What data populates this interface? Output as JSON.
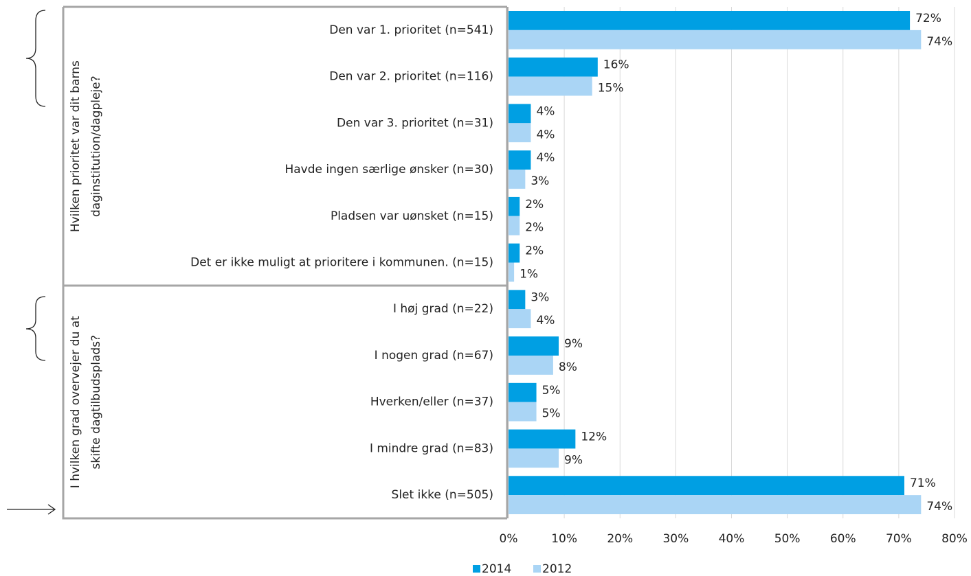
{
  "chart_data": {
    "type": "bar",
    "orientation": "horizontal",
    "categories": [
      "Den var 1. prioritet  (n=541)",
      "Den var 2. prioritet  (n=116)",
      "Den var 3. prioritet (n=31)",
      "Havde ingen særlige ønsker (n=30)",
      "Pladsen var uønsket (n=15)",
      "Det er ikke muligt at prioritere i kommunen. (n=15)",
      "I høj grad (n=22)",
      "I nogen grad  (n=67)",
      "Hverken/eller  (n=37)",
      "I mindre grad  (n=83)",
      "Slet ikke (n=505)"
    ],
    "groups": [
      {
        "lines": [
          "Hvilken prioritet var dit barns",
          "daginstitution/dagpleje?"
        ],
        "start": 0,
        "end": 5
      },
      {
        "lines": [
          "I hvilken grad overvejer du at",
          "skifte dagtilbudsplads?"
        ],
        "start": 6,
        "end": 10
      }
    ],
    "series": [
      {
        "name": "2014",
        "color": "#009fe3",
        "values": [
          72,
          16,
          4,
          4,
          2,
          2,
          3,
          9,
          5,
          12,
          71
        ],
        "value_labels": [
          "72%",
          "16%",
          "4%",
          "4%",
          "2%",
          "2%",
          "3%",
          "9%",
          "5%",
          "12%",
          "71%"
        ]
      },
      {
        "name": "2012",
        "color": "#aad5f5",
        "values": [
          74,
          15,
          4,
          3,
          2,
          1,
          4,
          8,
          5,
          9,
          74
        ],
        "value_labels": [
          "74%",
          "15%",
          "4%",
          "3%",
          "2%",
          "1%",
          "4%",
          "8%",
          "5%",
          "9%",
          "74%"
        ]
      }
    ],
    "xlim": [
      0,
      80
    ],
    "xticks": [
      {
        "value": 0,
        "label": "0%"
      },
      {
        "value": 10,
        "label": "10%"
      },
      {
        "value": 20,
        "label": "20%"
      },
      {
        "value": 30,
        "label": "30%"
      },
      {
        "value": 40,
        "label": "40%"
      },
      {
        "value": 50,
        "label": "50%"
      },
      {
        "value": 60,
        "label": "60%"
      },
      {
        "value": 70,
        "label": "70%"
      },
      {
        "value": 80,
        "label": "80%"
      }
    ],
    "grid": true,
    "legend": "bottom"
  }
}
